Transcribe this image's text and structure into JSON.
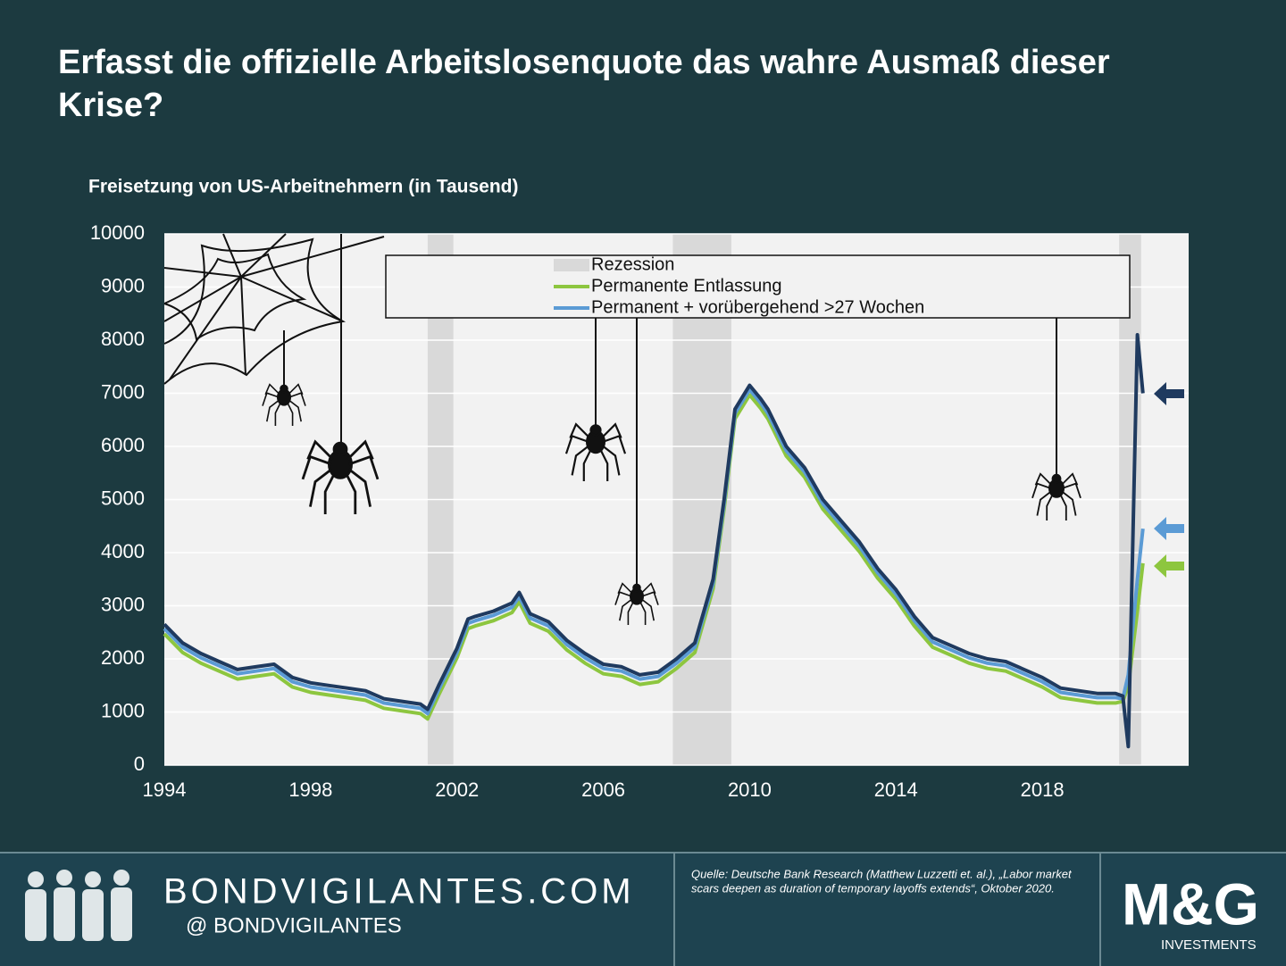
{
  "chart_data": {
    "type": "line",
    "title": "Erfasst die offizielle Arbeitslosenquote das wahre Ausmaß dieser Krise?",
    "y_label": "Freisetzung von US-Arbeitnehmern (in Tausend)",
    "xlim": [
      1994,
      2022
    ],
    "xticks": [
      1994,
      1998,
      2002,
      2006,
      2010,
      2014,
      2018
    ],
    "ylim": [
      0,
      10000
    ],
    "yticks": [
      0,
      1000,
      2000,
      3000,
      4000,
      5000,
      6000,
      7000,
      8000,
      9000,
      10000
    ],
    "grid": true,
    "recessions": {
      "name": "Rezession",
      "color": "#d9d9d9",
      "ranges": [
        [
          2001.2,
          2001.9
        ],
        [
          2007.9,
          2009.5
        ],
        [
          2020.1,
          2020.7
        ]
      ]
    },
    "x": [
      1994,
      1994.5,
      1995,
      1995.5,
      1996,
      1996.5,
      1997,
      1997.5,
      1998,
      1998.5,
      1999,
      1999.5,
      2000,
      2000.5,
      2001,
      2001.2,
      2001.5,
      2002,
      2002.3,
      2002.5,
      2003,
      2003.5,
      2003.7,
      2004,
      2004.5,
      2005,
      2005.5,
      2006,
      2006.5,
      2007,
      2007.5,
      2008,
      2008.5,
      2009,
      2009.3,
      2009.6,
      2010,
      2010.3,
      2010.5,
      2011,
      2011.5,
      2012,
      2012.5,
      2013,
      2013.5,
      2014,
      2014.5,
      2015,
      2015.5,
      2016,
      2016.5,
      2017,
      2017.5,
      2018,
      2018.5,
      2019,
      2019.5,
      2020,
      2020.2,
      2020.35,
      2020.6,
      2020.75
    ],
    "series": [
      {
        "name": "Permanente Entlassung",
        "color": "#8dc63f",
        "width": 4,
        "values": [
          2470,
          2120,
          1920,
          1770,
          1620,
          1670,
          1720,
          1470,
          1370,
          1320,
          1270,
          1220,
          1070,
          1020,
          970,
          870,
          1320,
          2020,
          2570,
          2620,
          2720,
          2870,
          3070,
          2670,
          2520,
          2170,
          1920,
          1720,
          1670,
          1520,
          1570,
          1820,
          2120,
          3320,
          4820,
          6520,
          6970,
          6720,
          6520,
          5820,
          5420,
          4820,
          4420,
          4020,
          3520,
          3120,
          2620,
          2220,
          2070,
          1920,
          1820,
          1770,
          1620,
          1470,
          1270,
          1220,
          1170,
          1170,
          1200,
          1500,
          2900,
          3800
        ]
      },
      {
        "name": "Permanent + vorübergehend >27 Wochen",
        "color": "#5b9bd5",
        "width": 4,
        "values": [
          2570,
          2220,
          2020,
          1870,
          1720,
          1770,
          1820,
          1570,
          1470,
          1420,
          1370,
          1320,
          1170,
          1120,
          1070,
          970,
          1420,
          2120,
          2670,
          2720,
          2820,
          2970,
          3170,
          2770,
          2620,
          2270,
          2020,
          1820,
          1770,
          1620,
          1670,
          1920,
          2220,
          3420,
          4920,
          6620,
          7070,
          6820,
          6620,
          5920,
          5520,
          4920,
          4520,
          4120,
          3620,
          3220,
          2720,
          2320,
          2170,
          2020,
          1920,
          1870,
          1720,
          1570,
          1370,
          1320,
          1270,
          1270,
          1250,
          1700,
          3500,
          4450
        ]
      },
      {
        "color": "#1f3a5f",
        "width": 4,
        "values": [
          2650,
          2300,
          2100,
          1950,
          1800,
          1850,
          1900,
          1650,
          1550,
          1500,
          1450,
          1400,
          1250,
          1200,
          1150,
          1050,
          1500,
          2200,
          2750,
          2800,
          2900,
          3050,
          3250,
          2850,
          2700,
          2350,
          2100,
          1900,
          1850,
          1700,
          1750,
          2000,
          2300,
          3500,
          5000,
          6700,
          7150,
          6900,
          6700,
          6000,
          5600,
          5000,
          4600,
          4200,
          3700,
          3300,
          2800,
          2400,
          2250,
          2100,
          2000,
          1950,
          1800,
          1650,
          1450,
          1400,
          1350,
          1350,
          1300,
          350,
          8100,
          7000
        ]
      }
    ]
  },
  "footer": {
    "site": "BONDVIGILANTES.COM",
    "handle": "@  BONDVIGILANTES",
    "source": [
      "Quelle: Deutsche Bank Research (Matthew Luzzetti et. al.), „Labor market",
      "scars deepen as duration of temporary layoffs extends“, Oktober 2020."
    ],
    "logo": "M&G",
    "logo_sub": "INVESTMENTS"
  }
}
